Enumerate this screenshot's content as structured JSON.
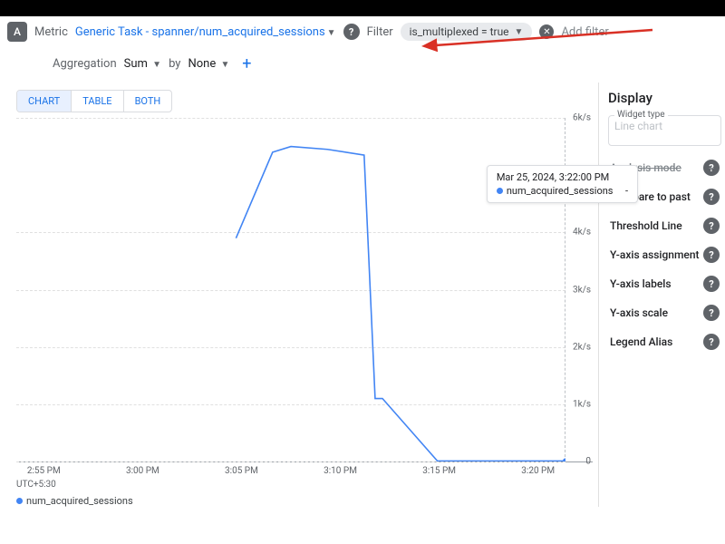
{
  "toolbar": {
    "badge": "A",
    "metric_label": "Metric",
    "metric_value": "Generic Task - spanner/num_acquired_sessions",
    "filter_label": "Filter",
    "filter_chip": "is_multiplexed = true",
    "add_filter_placeholder": "Add filter"
  },
  "aggregation": {
    "label": "Aggregation",
    "func": "Sum",
    "by_label": "by",
    "by_value": "None"
  },
  "view_tabs": {
    "chart": "CHART",
    "table": "TABLE",
    "both": "BOTH"
  },
  "chart": {
    "type": "line",
    "series_name": "num_acquired_sessions",
    "series_color": "#4285f4",
    "background_color": "#ffffff",
    "grid_color": "#e0e0e0",
    "utc_label": "UTC+5:30",
    "ylim": [
      0,
      6000
    ],
    "yticks": [
      {
        "v": 0,
        "l": "0"
      },
      {
        "v": 1000,
        "l": "1k/s"
      },
      {
        "v": 2000,
        "l": "2k/s"
      },
      {
        "v": 3000,
        "l": "3k/s"
      },
      {
        "v": 4000,
        "l": "4k/s"
      },
      {
        "v": 6000,
        "l": "6k/s"
      }
    ],
    "xticks": [
      "2:55 PM",
      "3:00 PM",
      "3:05 PM",
      "3:10 PM",
      "3:15 PM",
      "3:20 PM"
    ],
    "xrange_min": 0,
    "xrange_max": 30,
    "points": [
      {
        "x": 12,
        "y": 3900
      },
      {
        "x": 14,
        "y": 5400
      },
      {
        "x": 15,
        "y": 5500
      },
      {
        "x": 17,
        "y": 5450
      },
      {
        "x": 19,
        "y": 5350
      },
      {
        "x": 19.6,
        "y": 1100
      },
      {
        "x": 20,
        "y": 1100
      },
      {
        "x": 23,
        "y": 10
      },
      {
        "x": 28,
        "y": 10
      },
      {
        "x": 30,
        "y": 10
      }
    ],
    "tooltip": {
      "time": "Mar 25, 2024, 3:22:00 PM",
      "series": "num_acquired_sessions",
      "value": "-"
    }
  },
  "side": {
    "title": "Display",
    "widget_type_label": "Widget type",
    "widget_type_value": "Line chart",
    "analysis_mode": "Analysis mode",
    "options": [
      "Compare to past",
      "Threshold Line",
      "Y-axis assignment",
      "Y-axis labels",
      "Y-axis scale",
      "Legend Alias"
    ]
  },
  "arrow_color": "#d93025"
}
